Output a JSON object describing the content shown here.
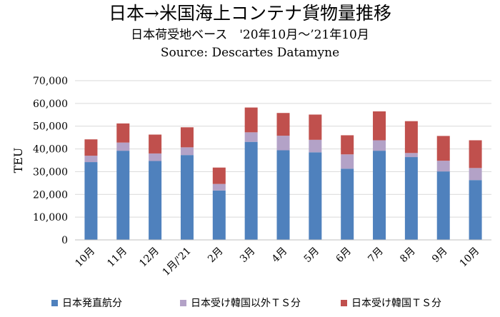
{
  "title": "日本→米国海上コンテナ貨物量推移",
  "subtitle": "日本荷受地ベース　'20年10月～’21年10月",
  "source": "Source: Descartes Datamyne",
  "chart_data": {
    "type": "bar",
    "stacked": true,
    "ylabel": "TEU",
    "xlabel": "",
    "ylim": [
      0,
      70000
    ],
    "yticks": [
      0,
      10000,
      20000,
      30000,
      40000,
      50000,
      60000,
      70000
    ],
    "ytick_labels": [
      "0",
      "10,000",
      "20,000",
      "30,000",
      "40,000",
      "50,000",
      "60,000",
      "70,000"
    ],
    "grid": true,
    "legend_position": "bottom",
    "categories": [
      "10月",
      "11月",
      "12月",
      "1月/'21",
      "2月",
      "3月",
      "4月",
      "5月",
      "6月",
      "7月",
      "8月",
      "9月",
      "10月"
    ],
    "series": [
      {
        "name": "日本発直航分",
        "color": "#4F81BD",
        "values": [
          34200,
          39200,
          34700,
          37300,
          21700,
          43100,
          39400,
          38500,
          31300,
          39200,
          36400,
          30100,
          26300
        ]
      },
      {
        "name": "日本受け韓国以外ＴＳ分",
        "color": "#B3A2C7",
        "values": [
          2800,
          3600,
          3300,
          3400,
          2900,
          4200,
          6400,
          5500,
          6300,
          4600,
          1800,
          4700,
          5300
        ]
      },
      {
        "name": "日本受け韓国ＴＳ分",
        "color": "#C0504D",
        "values": [
          7200,
          8400,
          8300,
          8800,
          7200,
          10900,
          10000,
          11100,
          8400,
          12700,
          14000,
          10900,
          12200
        ]
      }
    ]
  }
}
